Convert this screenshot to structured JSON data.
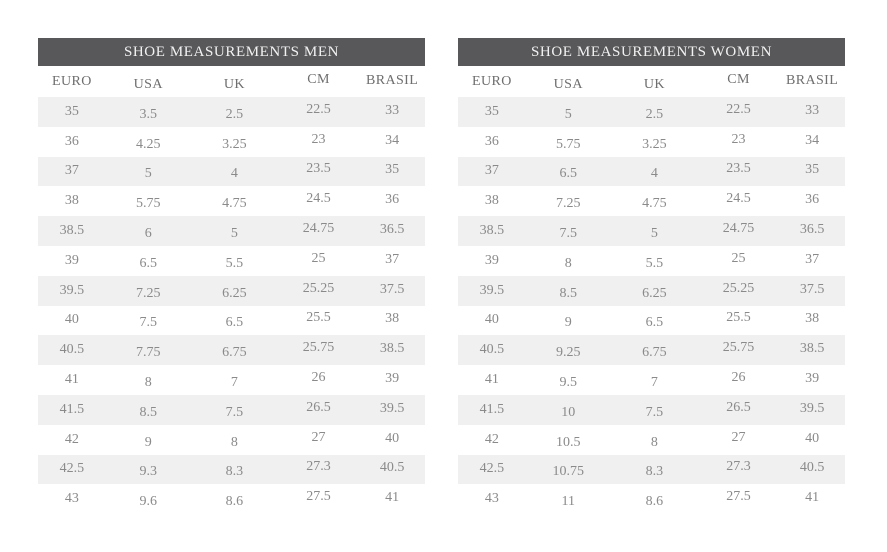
{
  "colors": {
    "header_bg": "#58585a",
    "header_text": "#f2f2f2",
    "column_header_text": "#6e6e6e",
    "cell_text": "#8a8a8a",
    "stripe_bg": "#f0f0f0"
  },
  "tables": [
    {
      "title": "SHOE MEASUREMENTS MEN",
      "columns": [
        "EURO",
        "USA",
        "UK",
        "CM",
        "BRASIL"
      ],
      "rows": [
        [
          "35",
          "3.5",
          "2.5",
          "22.5",
          "33"
        ],
        [
          "36",
          "4.25",
          "3.25",
          "23",
          "34"
        ],
        [
          "37",
          "5",
          "4",
          "23.5",
          "35"
        ],
        [
          "38",
          "5.75",
          "4.75",
          "24.5",
          "36"
        ],
        [
          "38.5",
          "6",
          "5",
          "24.75",
          "36.5"
        ],
        [
          "39",
          "6.5",
          "5.5",
          "25",
          "37"
        ],
        [
          "39.5",
          "7.25",
          "6.25",
          "25.25",
          "37.5"
        ],
        [
          "40",
          "7.5",
          "6.5",
          "25.5",
          "38"
        ],
        [
          "40.5",
          "7.75",
          "6.75",
          "25.75",
          "38.5"
        ],
        [
          "41",
          "8",
          "7",
          "26",
          "39"
        ],
        [
          "41.5",
          "8.5",
          "7.5",
          "26.5",
          "39.5"
        ],
        [
          "42",
          "9",
          "8",
          "27",
          "40"
        ],
        [
          "42.5",
          "9.3",
          "8.3",
          "27.3",
          "40.5"
        ],
        [
          "43",
          "9.6",
          "8.6",
          "27.5",
          "41"
        ]
      ]
    },
    {
      "title": "SHOE MEASUREMENTS WOMEN",
      "columns": [
        "EURO",
        "USA",
        "UK",
        "CM",
        "BRASIL"
      ],
      "rows": [
        [
          "35",
          "5",
          "2.5",
          "22.5",
          "33"
        ],
        [
          "36",
          "5.75",
          "3.25",
          "23",
          "34"
        ],
        [
          "37",
          "6.5",
          "4",
          "23.5",
          "35"
        ],
        [
          "38",
          "7.25",
          "4.75",
          "24.5",
          "36"
        ],
        [
          "38.5",
          "7.5",
          "5",
          "24.75",
          "36.5"
        ],
        [
          "39",
          "8",
          "5.5",
          "25",
          "37"
        ],
        [
          "39.5",
          "8.5",
          "6.25",
          "25.25",
          "37.5"
        ],
        [
          "40",
          "9",
          "6.5",
          "25.5",
          "38"
        ],
        [
          "40.5",
          "9.25",
          "6.75",
          "25.75",
          "38.5"
        ],
        [
          "41",
          "9.5",
          "7",
          "26",
          "39"
        ],
        [
          "41.5",
          "10",
          "7.5",
          "26.5",
          "39.5"
        ],
        [
          "42",
          "10.5",
          "8",
          "27",
          "40"
        ],
        [
          "42.5",
          "10.75",
          "8.3",
          "27.3",
          "40.5"
        ],
        [
          "43",
          "11",
          "8.6",
          "27.5",
          "41"
        ]
      ]
    }
  ]
}
